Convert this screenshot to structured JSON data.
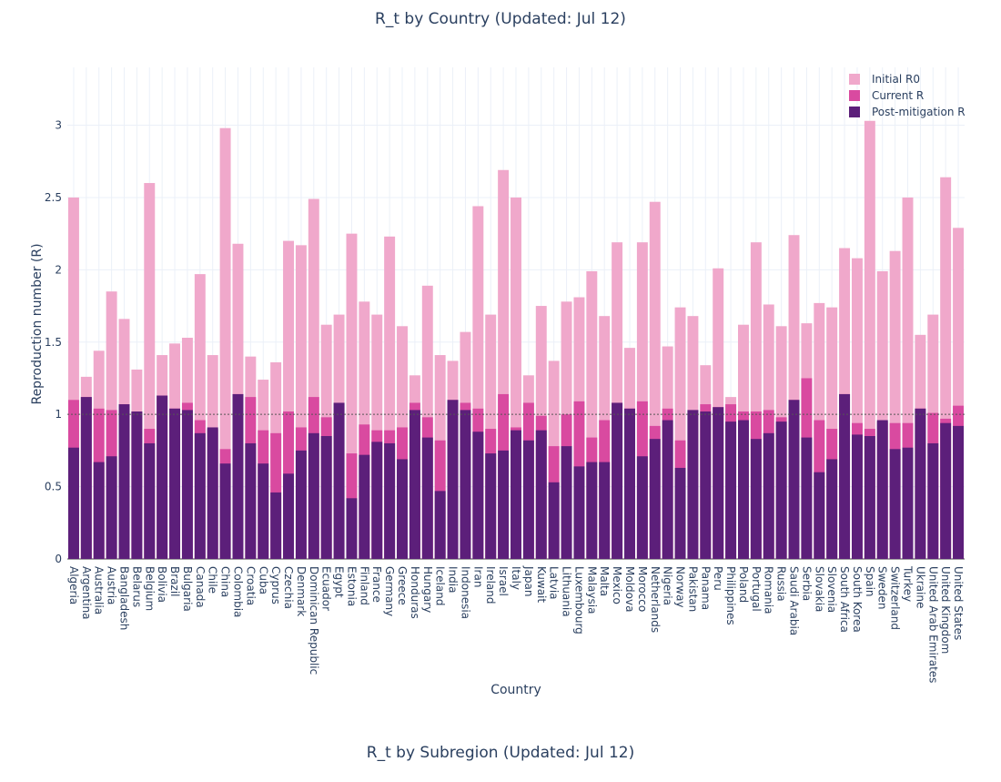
{
  "chart_data": [
    {
      "type": "bar",
      "barmode": "overlay",
      "title": "R_t by Country (Updated: Jul 12)",
      "xlabel": "Country",
      "ylabel": "Reproduction number (R)",
      "ylim": [
        0,
        3.4
      ],
      "yticks": [
        0,
        0.5,
        1,
        1.5,
        2,
        2.5,
        3
      ],
      "ytick_labels": [
        "0",
        "0.5",
        "1",
        "1.5",
        "2",
        "2.5",
        "3"
      ],
      "grid": true,
      "reference_line": 1,
      "legend_position": "top-right",
      "categories": [
        "Algeria",
        "Argentina",
        "Australia",
        "Austria",
        "Bangladesh",
        "Belarus",
        "Belgium",
        "Bolivia",
        "Brazil",
        "Bulgaria",
        "Canada",
        "Chile",
        "China",
        "Colombia",
        "Croatia",
        "Cuba",
        "Cyprus",
        "Czechia",
        "Denmark",
        "Dominican Republic",
        "Ecuador",
        "Egypt",
        "Estonia",
        "Finland",
        "France",
        "Germany",
        "Greece",
        "Honduras",
        "Hungary",
        "Iceland",
        "India",
        "Indonesia",
        "Iran",
        "Ireland",
        "Israel",
        "Italy",
        "Japan",
        "Kuwait",
        "Latvia",
        "Lithuania",
        "Luxembourg",
        "Malaysia",
        "Malta",
        "Mexico",
        "Moldova",
        "Morocco",
        "Netherlands",
        "Nigeria",
        "Norway",
        "Pakistan",
        "Panama",
        "Peru",
        "Philippines",
        "Poland",
        "Portugal",
        "Romania",
        "Russia",
        "Saudi Arabia",
        "Serbia",
        "Slovakia",
        "Slovenia",
        "South Africa",
        "South Korea",
        "Spain",
        "Sweden",
        "Switzerland",
        "Turkey",
        "Ukraine",
        "United Arab Emirates",
        "United Kingdom",
        "United States"
      ],
      "series": [
        {
          "name": "Initial R0",
          "color": "#f0a8cb",
          "values": [
            2.5,
            1.26,
            1.44,
            1.85,
            1.66,
            1.31,
            2.6,
            1.41,
            1.49,
            1.53,
            1.97,
            1.41,
            2.98,
            2.18,
            1.4,
            1.24,
            1.36,
            2.2,
            2.17,
            2.49,
            1.62,
            1.69,
            2.25,
            1.78,
            1.69,
            2.23,
            1.61,
            1.27,
            1.89,
            1.41,
            1.37,
            1.57,
            2.44,
            1.69,
            2.69,
            2.5,
            1.27,
            1.75,
            1.37,
            1.78,
            1.81,
            1.99,
            1.68,
            2.19,
            1.46,
            2.19,
            2.47,
            1.47,
            1.74,
            1.68,
            1.34,
            2.01,
            1.12,
            1.62,
            2.19,
            1.76,
            1.61,
            2.24,
            1.63,
            1.77,
            1.74,
            2.15,
            2.08,
            3.03,
            1.99,
            2.13,
            2.5,
            1.55,
            1.69,
            2.64,
            2.29
          ]
        },
        {
          "name": "Current R",
          "color": "#d94aa0",
          "values": [
            1.1,
            1.12,
            1.04,
            1.03,
            1.07,
            1.02,
            0.9,
            1.13,
            1.04,
            1.08,
            0.96,
            0.9,
            0.76,
            1.14,
            1.12,
            0.89,
            0.87,
            1.02,
            0.91,
            1.12,
            0.98,
            1.08,
            0.73,
            0.93,
            0.89,
            0.89,
            0.91,
            1.08,
            0.98,
            0.82,
            1.1,
            1.08,
            1.04,
            0.9,
            1.14,
            0.91,
            1.08,
            0.99,
            0.78,
            1.0,
            1.09,
            0.84,
            0.96,
            1.08,
            1.04,
            1.09,
            0.92,
            1.04,
            0.82,
            1.03,
            1.07,
            1.05,
            1.07,
            1.02,
            1.02,
            1.03,
            0.98,
            1.1,
            1.25,
            0.96,
            0.9,
            1.14,
            0.94,
            0.9,
            0.95,
            0.94,
            0.94,
            1.04,
            1.01,
            0.97,
            1.06
          ]
        },
        {
          "name": "Post-mitigation R",
          "color": "#5c1f7a",
          "values": [
            0.77,
            1.12,
            0.67,
            0.71,
            1.07,
            1.02,
            0.8,
            1.13,
            1.04,
            1.03,
            0.87,
            0.91,
            0.66,
            1.14,
            0.8,
            0.66,
            0.46,
            0.59,
            0.75,
            0.87,
            0.85,
            1.08,
            0.42,
            0.72,
            0.81,
            0.8,
            0.69,
            1.03,
            0.84,
            0.47,
            1.1,
            1.03,
            0.88,
            0.73,
            0.75,
            0.89,
            0.82,
            0.89,
            0.53,
            0.78,
            0.64,
            0.67,
            0.67,
            1.08,
            1.04,
            0.71,
            0.83,
            0.96,
            0.63,
            1.03,
            1.02,
            1.05,
            0.95,
            0.96,
            0.83,
            0.87,
            0.95,
            1.1,
            0.84,
            0.6,
            0.69,
            1.14,
            0.86,
            0.85,
            0.96,
            0.76,
            0.77,
            1.04,
            0.8,
            0.94,
            0.92
          ]
        }
      ]
    },
    {
      "type": "bar",
      "title": "R_t by Subregion (Updated: Jul 12)"
    }
  ]
}
